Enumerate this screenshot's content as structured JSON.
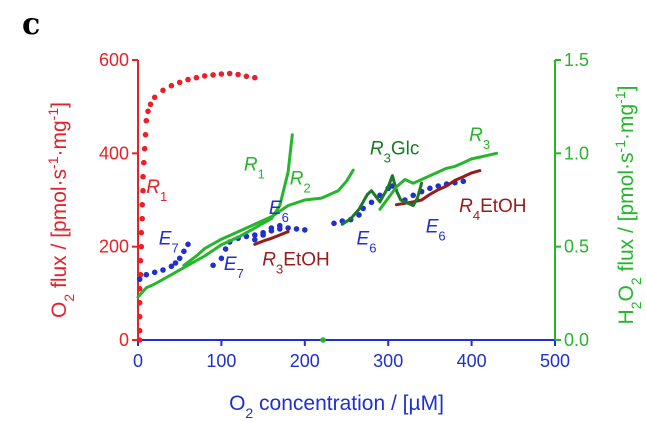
{
  "panel_label": "c",
  "chart_data": {
    "type": "scatter",
    "x_axis": {
      "label_parts": [
        "O",
        "2",
        " concentration / [µM]"
      ],
      "range": [
        0,
        500
      ],
      "ticks": [
        0,
        100,
        200,
        300,
        400,
        500
      ],
      "color": "#1f2fd1"
    },
    "y_left": {
      "label_parts": [
        "O",
        "2",
        " flux  / [pmol·s",
        "-1",
        "·mg",
        "-1",
        "]"
      ],
      "range": [
        0,
        600
      ],
      "ticks": [
        0,
        200,
        400,
        600
      ],
      "color": "#e8202a"
    },
    "y_right": {
      "label_parts": [
        "H",
        "2",
        "O",
        "2",
        " flux / [pmol·s",
        "-1",
        "·mg",
        "-1",
        "]"
      ],
      "range": [
        0,
        1.5
      ],
      "ticks": [
        "0.0",
        "0.5",
        "1.0",
        "1.5"
      ],
      "color": "#27b52c"
    },
    "series": [
      {
        "name": "R1",
        "axis": "left",
        "color": "#e8202a",
        "style": "dots",
        "points": [
          [
            2,
            0
          ],
          [
            2,
            20
          ],
          [
            2,
            50
          ],
          [
            2,
            80
          ],
          [
            2,
            110
          ],
          [
            3,
            140
          ],
          [
            3,
            170
          ],
          [
            4,
            200
          ],
          [
            4,
            230
          ],
          [
            5,
            260
          ],
          [
            5,
            290
          ],
          [
            6,
            320
          ],
          [
            6,
            350
          ],
          [
            7,
            380
          ],
          [
            8,
            410
          ],
          [
            9,
            440
          ],
          [
            10,
            470
          ],
          [
            12,
            490
          ],
          [
            15,
            505
          ],
          [
            20,
            520
          ],
          [
            30,
            535
          ],
          [
            40,
            545
          ],
          [
            50,
            552
          ],
          [
            60,
            558
          ],
          [
            70,
            562
          ],
          [
            80,
            566
          ],
          [
            90,
            568
          ],
          [
            100,
            570
          ],
          [
            110,
            571
          ],
          [
            120,
            569
          ],
          [
            130,
            565
          ],
          [
            140,
            562
          ]
        ]
      },
      {
        "name": "E7 (first)",
        "axis": "left",
        "color": "#1f2fd1",
        "style": "dots",
        "points": [
          [
            2,
            130
          ],
          [
            10,
            140
          ],
          [
            20,
            145
          ],
          [
            30,
            150
          ],
          [
            40,
            158
          ],
          [
            45,
            165
          ],
          [
            50,
            175
          ],
          [
            55,
            190
          ],
          [
            60,
            205
          ]
        ]
      },
      {
        "name": "E7 (second)",
        "axis": "left",
        "color": "#1f2fd1",
        "style": "dots",
        "points": [
          [
            90,
            160
          ],
          [
            100,
            175
          ],
          [
            105,
            195
          ],
          [
            110,
            210
          ],
          [
            120,
            218
          ],
          [
            130,
            222
          ],
          [
            140,
            225
          ],
          [
            150,
            230
          ],
          [
            160,
            234
          ],
          [
            170,
            238
          ]
        ]
      },
      {
        "name": "E6 (first)",
        "axis": "left",
        "color": "#1f2fd1",
        "style": "dots",
        "points": [
          [
            140,
            215
          ],
          [
            150,
            225
          ],
          [
            160,
            240
          ],
          [
            170,
            245
          ],
          [
            180,
            240
          ],
          [
            190,
            238
          ],
          [
            200,
            236
          ]
        ]
      },
      {
        "name": "E6 (second)",
        "axis": "left",
        "color": "#1f2fd1",
        "style": "dots",
        "points": [
          [
            235,
            250
          ],
          [
            245,
            255
          ],
          [
            255,
            258
          ],
          [
            265,
            268
          ],
          [
            270,
            282
          ],
          [
            280,
            295
          ],
          [
            290,
            310
          ],
          [
            300,
            325
          ],
          [
            305,
            330
          ]
        ]
      },
      {
        "name": "E6 (third)",
        "axis": "left",
        "color": "#1f2fd1",
        "style": "dots",
        "points": [
          [
            320,
            300
          ],
          [
            330,
            310
          ],
          [
            340,
            318
          ],
          [
            350,
            325
          ],
          [
            360,
            330
          ],
          [
            370,
            334
          ],
          [
            380,
            337
          ],
          [
            390,
            340
          ]
        ]
      },
      {
        "name": "R3EtOH",
        "axis": "left",
        "color": "#9a1b1b",
        "style": "line",
        "points": [
          [
            140,
            205
          ],
          [
            150,
            212
          ],
          [
            160,
            218
          ],
          [
            170,
            225
          ],
          [
            180,
            232
          ]
        ]
      },
      {
        "name": "R4EtOH",
        "axis": "left",
        "color": "#9a1b1b",
        "style": "line",
        "points": [
          [
            310,
            290
          ],
          [
            320,
            293
          ],
          [
            330,
            296
          ],
          [
            340,
            300
          ],
          [
            350,
            312
          ],
          [
            360,
            322
          ],
          [
            370,
            330
          ],
          [
            380,
            342
          ],
          [
            390,
            350
          ],
          [
            400,
            358
          ],
          [
            410,
            363
          ]
        ]
      },
      {
        "name": "R1 (H2O2)",
        "axis": "right",
        "color": "#27b52c",
        "style": "line",
        "points": [
          [
            0,
            0.23
          ],
          [
            10,
            0.28
          ],
          [
            20,
            0.3
          ],
          [
            40,
            0.35
          ],
          [
            60,
            0.4
          ],
          [
            80,
            0.45
          ],
          [
            100,
            0.51
          ],
          [
            120,
            0.55
          ],
          [
            140,
            0.6
          ],
          [
            160,
            0.65
          ],
          [
            170,
            0.72
          ],
          [
            180,
            0.9
          ],
          [
            185,
            1.1
          ]
        ]
      },
      {
        "name": "R2 (H2O2)",
        "axis": "right",
        "color": "#27b52c",
        "style": "line",
        "points": [
          [
            55,
            0.4
          ],
          [
            70,
            0.45
          ],
          [
            80,
            0.49
          ],
          [
            100,
            0.54
          ],
          [
            120,
            0.58
          ],
          [
            140,
            0.62
          ],
          [
            160,
            0.66
          ],
          [
            180,
            0.72
          ],
          [
            200,
            0.75
          ],
          [
            220,
            0.76
          ],
          [
            240,
            0.8
          ],
          [
            250,
            0.85
          ],
          [
            258,
            0.91
          ]
        ]
      },
      {
        "name": "R3Glc (H2O2)",
        "axis": "right",
        "color": "#1b7a25",
        "style": "line",
        "points": [
          [
            245,
            0.62
          ],
          [
            255,
            0.65
          ],
          [
            265,
            0.7
          ],
          [
            275,
            0.78
          ],
          [
            280,
            0.8
          ],
          [
            290,
            0.74
          ],
          [
            300,
            0.82
          ],
          [
            305,
            0.88
          ],
          [
            310,
            0.8
          ],
          [
            315,
            0.75
          ],
          [
            330,
            0.72
          ],
          [
            335,
            0.76
          ],
          [
            340,
            0.84
          ]
        ]
      },
      {
        "name": "R3 (H2O2)",
        "axis": "right",
        "color": "#27b52c",
        "style": "line",
        "points": [
          [
            290,
            0.7
          ],
          [
            300,
            0.76
          ],
          [
            310,
            0.82
          ],
          [
            320,
            0.86
          ],
          [
            330,
            0.84
          ],
          [
            340,
            0.86
          ],
          [
            350,
            0.88
          ],
          [
            360,
            0.9
          ],
          [
            370,
            0.92
          ],
          [
            380,
            0.93
          ],
          [
            390,
            0.95
          ],
          [
            400,
            0.97
          ],
          [
            410,
            0.98
          ],
          [
            420,
            0.99
          ],
          [
            430,
            1.0
          ]
        ]
      },
      {
        "name": "zero marker",
        "axis": "right",
        "color": "#27b52c",
        "style": "dots",
        "points": [
          [
            222,
            0.0
          ]
        ]
      }
    ],
    "annotations": [
      {
        "base": "R",
        "sub": "1",
        "suffix": "",
        "color": "#e8202a",
        "x": 10,
        "y": 315,
        "axis": "left"
      },
      {
        "base": "R",
        "sub": "1",
        "suffix": "",
        "color": "#27b52c",
        "x": 127,
        "y": 363,
        "axis": "left"
      },
      {
        "base": "R",
        "sub": "2",
        "suffix": "",
        "color": "#27b52c",
        "x": 182,
        "y": 333,
        "axis": "left"
      },
      {
        "base": "R",
        "sub": "3",
        "suffix": "Glc",
        "color": "#1b7a25",
        "x": 278,
        "y": 397,
        "axis": "left"
      },
      {
        "base": "R",
        "sub": "3",
        "suffix": "",
        "color": "#27b52c",
        "x": 397,
        "y": 426,
        "axis": "left"
      },
      {
        "base": "E",
        "sub": "6",
        "suffix": "",
        "color": "#1f2fd1",
        "x": 157,
        "y": 270,
        "axis": "left"
      },
      {
        "base": "E",
        "sub": "7",
        "suffix": "",
        "color": "#1f2fd1",
        "x": 25,
        "y": 205,
        "axis": "left"
      },
      {
        "base": "E",
        "sub": "7",
        "suffix": "",
        "color": "#1f2fd1",
        "x": 103,
        "y": 150,
        "axis": "left"
      },
      {
        "base": "R",
        "sub": "3",
        "suffix": "EtOH",
        "color": "#9a1b1b",
        "x": 149,
        "y": 160,
        "axis": "left"
      },
      {
        "base": "E",
        "sub": "6",
        "suffix": "",
        "color": "#1f2fd1",
        "x": 262,
        "y": 205,
        "axis": "left"
      },
      {
        "base": "R",
        "sub": "4",
        "suffix": "EtOH",
        "color": "#9a1b1b",
        "x": 385,
        "y": 274,
        "axis": "left"
      },
      {
        "base": "E",
        "sub": "6",
        "suffix": "",
        "color": "#1f2fd1",
        "x": 345,
        "y": 230,
        "axis": "left"
      }
    ]
  }
}
